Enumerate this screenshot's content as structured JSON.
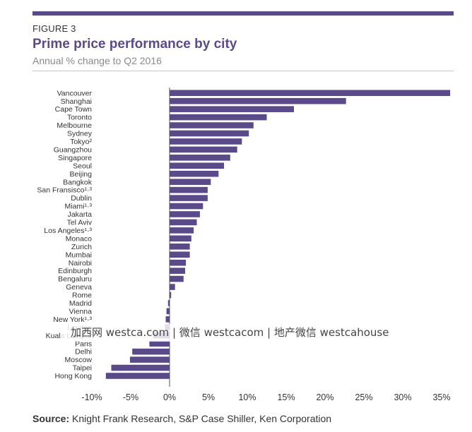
{
  "header": {
    "figure_label": "FIGURE 3",
    "title": "Prime price performance by city",
    "subtitle": "Annual % change to Q2 2016"
  },
  "colors": {
    "accent": "#5b4a8a",
    "bar": "#5b4a8a"
  },
  "chart_data": {
    "type": "bar",
    "orientation": "horizontal",
    "title": "Prime price performance by city",
    "subtitle": "Annual % change to Q2 2016",
    "xlim": [
      -10,
      36
    ],
    "xticks": [
      -10,
      -5,
      0,
      5,
      10,
      15,
      20,
      25,
      30,
      35
    ],
    "tick_suffix": "%",
    "grid": false,
    "categories": [
      "Vancouver",
      "Shanghai",
      "Cape Town",
      "Toronto",
      "Melbourne",
      "Sydney",
      "Tokyo²",
      "Guangzhou",
      "Singapore",
      "Seoul",
      "Beijing",
      "Bangkok",
      "San Fransisco¹·³",
      "Dublin",
      "Miami¹·³",
      "Jakarta",
      "Tel Aviv",
      "Los Angeles¹·³",
      "Monaco",
      "Zurich",
      "Mumbai",
      "Nairobi",
      "Edinburgh",
      "Bengaluru",
      "Geneva",
      "Rome",
      "Madrid",
      "Vienna",
      "New York¹·³",
      "London",
      "Kuala Lumpur",
      "Paris",
      "Delhi",
      "Moscow",
      "Taipei",
      "Hong Kong"
    ],
    "values": [
      36.1,
      22.7,
      16.0,
      12.5,
      10.8,
      10.2,
      9.3,
      8.7,
      7.8,
      7.0,
      6.3,
      5.3,
      4.9,
      4.9,
      4.3,
      3.9,
      3.5,
      3.1,
      2.8,
      2.6,
      2.6,
      2.1,
      2.0,
      1.8,
      0.7,
      0.2,
      -0.2,
      -0.4,
      -0.5,
      -0.6,
      -2.1,
      -2.6,
      -4.8,
      -5.1,
      -7.5,
      -8.2
    ]
  },
  "watermark": "加西网 westca.com | 微信 westcacom | 地产微信 westcahouse",
  "source": {
    "label": "Source:",
    "text": "Knight Frank Research, S&P Case Shiller, Ken Corporation"
  }
}
